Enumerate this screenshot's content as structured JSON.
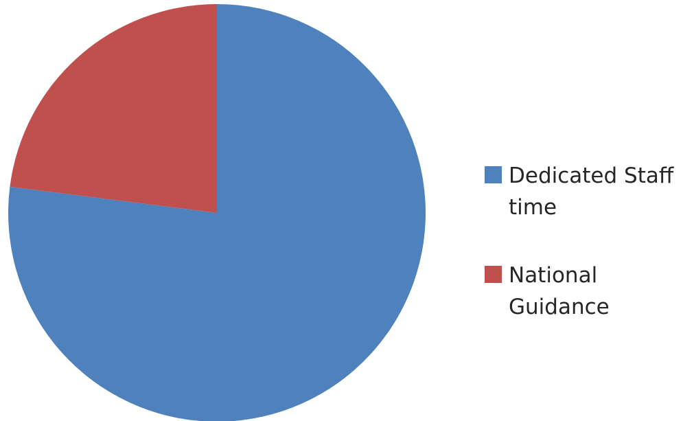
{
  "chart_data": {
    "type": "pie",
    "title": "",
    "slices": [
      {
        "label_lines": [
          "Dedicated Staff",
          "time"
        ],
        "value": 77,
        "color": "#4F81BD"
      },
      {
        "label_lines": [
          "National",
          "Guidance"
        ],
        "value": 23,
        "color": "#C0504D"
      }
    ],
    "start_angle_deg": 0,
    "direction": "clockwise",
    "legend": {
      "position": "right"
    }
  }
}
